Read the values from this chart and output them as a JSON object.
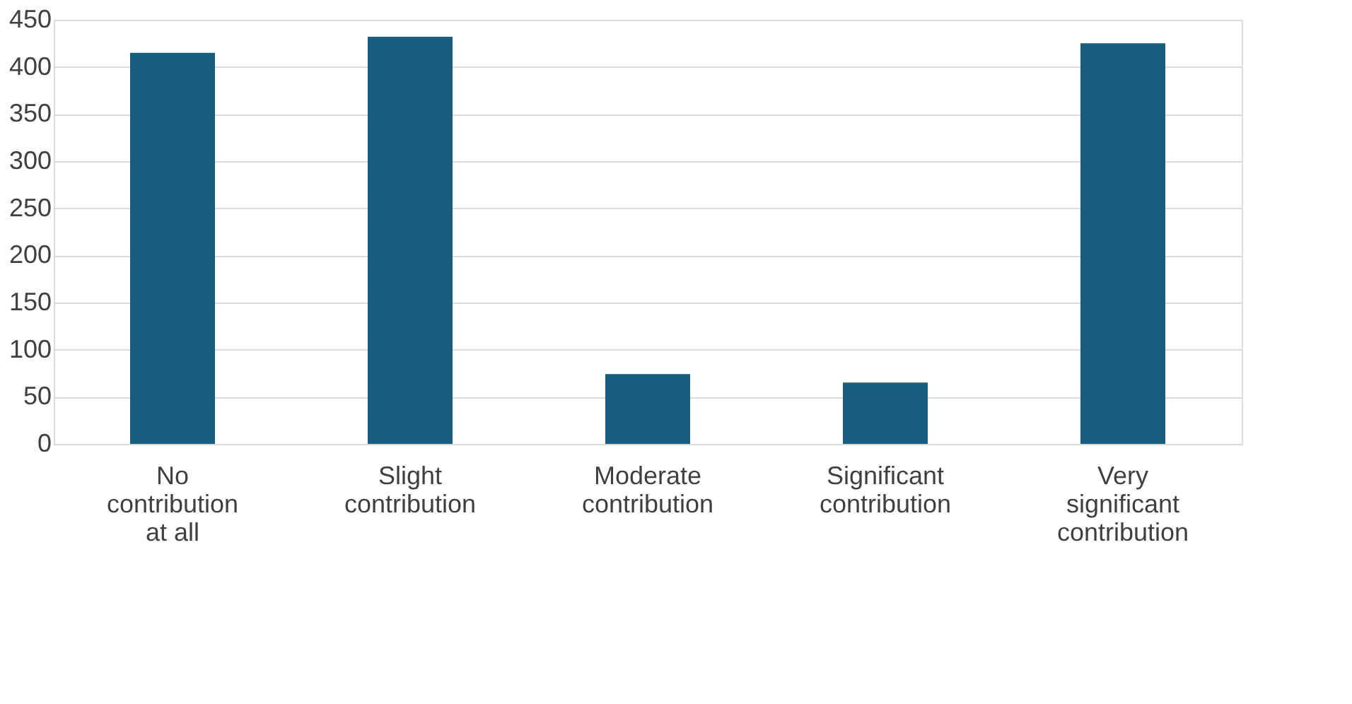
{
  "chart_data": {
    "type": "bar",
    "categories": [
      "No contribution at all",
      "Slight contribution",
      "Moderate contribution",
      "Significant contribution",
      "Very significant contribution"
    ],
    "values": [
      415,
      432,
      74,
      65,
      425
    ],
    "color": "#175e7f",
    "ylim": [
      0,
      450
    ],
    "yticks": [
      0,
      50,
      100,
      150,
      200,
      250,
      300,
      350,
      400,
      450
    ],
    "grid": "y"
  }
}
